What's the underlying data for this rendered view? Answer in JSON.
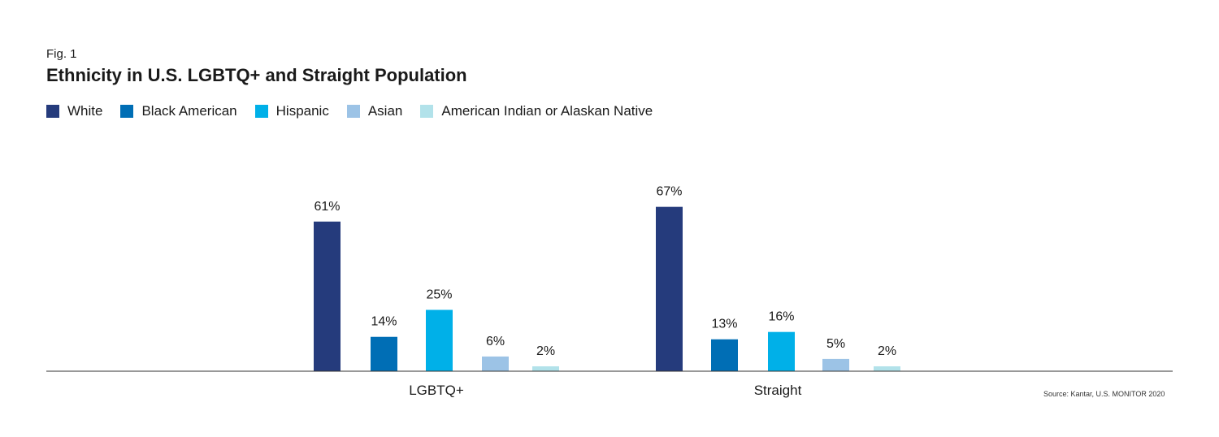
{
  "fig_label": "Fig. 1",
  "source": "Source: Kantar, U.S. MONITOR 2020",
  "chart_data": {
    "type": "bar",
    "title": "Ethnicity in U.S. LGBTQ+ and Straight Population",
    "categories": [
      "LGBTQ+",
      "Straight"
    ],
    "series": [
      {
        "name": "White",
        "color": "#253b7c",
        "values": [
          61,
          67
        ],
        "labels": [
          "61%",
          "67%"
        ]
      },
      {
        "name": "Black American",
        "color": "#006eb5",
        "values": [
          14,
          13
        ],
        "labels": [
          "14%",
          "13%"
        ]
      },
      {
        "name": "Hispanic",
        "color": "#00b0e8",
        "values": [
          25,
          16
        ],
        "labels": [
          "25%",
          "16%"
        ]
      },
      {
        "name": "Asian",
        "color": "#9cc3e6",
        "values": [
          6,
          5
        ],
        "labels": [
          "6%",
          "5%"
        ]
      },
      {
        "name": "American Indian or Alaskan Native",
        "color": "#b2e2ea",
        "values": [
          2,
          2
        ],
        "labels": [
          "2%",
          "2%"
        ]
      }
    ],
    "unit": "%",
    "ylim": [
      0,
      70
    ],
    "grid": false,
    "legend": "top-left"
  }
}
